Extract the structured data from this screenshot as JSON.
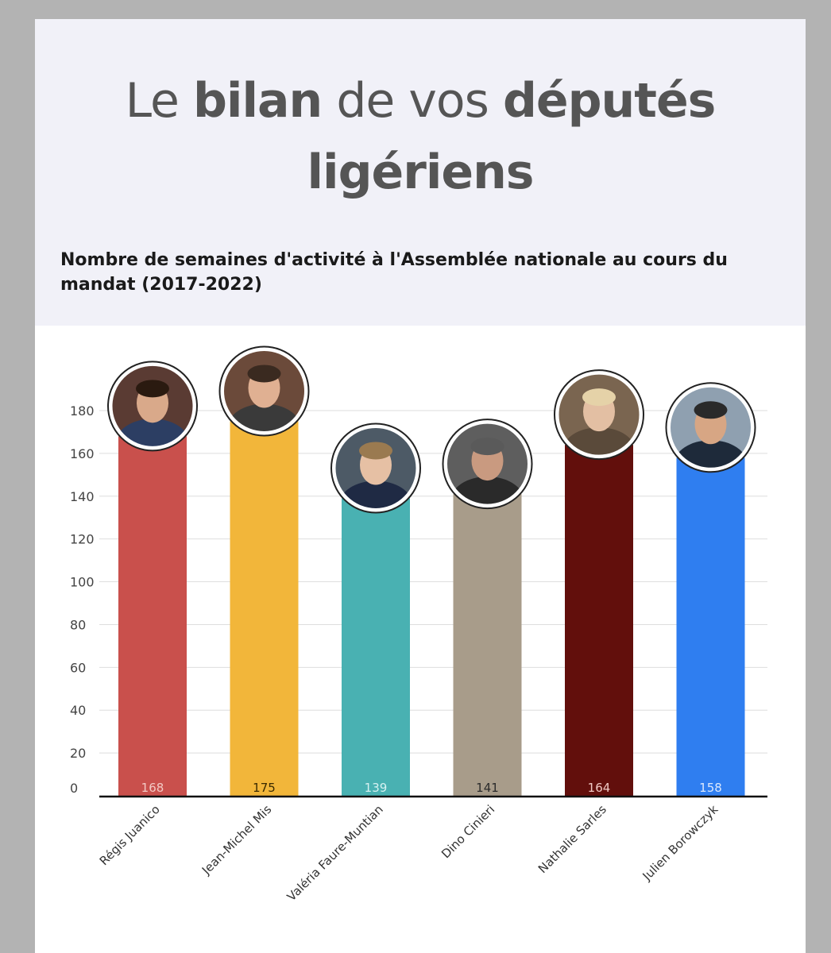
{
  "header": {
    "title_parts": [
      {
        "text": "Le ",
        "bold": false
      },
      {
        "text": "bilan",
        "bold": true
      },
      {
        "text": " de vos ",
        "bold": false
      },
      {
        "text": "députés",
        "bold": true
      },
      {
        "text": "ligériens",
        "bold": true,
        "newline": true
      }
    ],
    "subtitle": "Nombre de semaines d'activité à l'Assemblée nationale au cours du mandat (2017-2022)"
  },
  "chart_data": {
    "type": "bar",
    "categories": [
      "Régis Juanico",
      "Jean-Michel Mis",
      "Valéria Faure-Muntian",
      "Dino Cinieri",
      "Nathalie Sarles",
      "Julien Borowczyk"
    ],
    "values": [
      168,
      175,
      139,
      141,
      164,
      158
    ],
    "colors": [
      "#c9504c",
      "#f2b63a",
      "#49b1b2",
      "#a89c8a",
      "#620f0c",
      "#2f7ef0"
    ],
    "label_colors": [
      "#f3c9c4",
      "#3a2a00",
      "#d6f1f1",
      "#2b2b2b",
      "#f0c9c4",
      "#dbe8fd"
    ],
    "yticks": [
      0,
      20,
      40,
      60,
      80,
      100,
      120,
      140,
      160,
      180
    ],
    "ylim": [
      0,
      180
    ],
    "grid": true,
    "photo_bg": [
      "#5a3b33",
      "#6b4a3a",
      "#4d5a66",
      "#5e5e5e",
      "#7a6550",
      "#8fa0b0"
    ],
    "photo_suit": [
      "#2c3e63",
      "#3a3a3a",
      "#1f2a44",
      "#2a2a2a",
      "#5a4a3a",
      "#1e2a3a"
    ],
    "photo_skin": [
      "#d9a98a",
      "#e0b092",
      "#e6c0a4",
      "#c99a80",
      "#e3bfa3",
      "#d7a684"
    ],
    "photo_hair": [
      "#2a1a10",
      "#3a2a20",
      "#9a7a50",
      "#5a5a5a",
      "#e5d2a8",
      "#2a2a2a"
    ]
  }
}
